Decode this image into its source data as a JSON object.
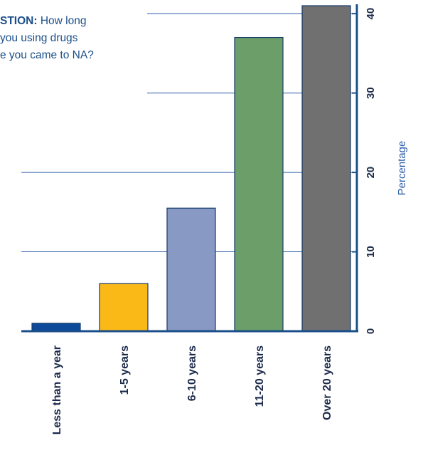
{
  "question": {
    "label": "STION:",
    "line1": "How long",
    "line2": "you using drugs",
    "line3": "e you came to NA?"
  },
  "chart_data": {
    "type": "bar",
    "categories": [
      "Less than a year",
      "1-5 years",
      "6-10 years",
      "11-20 years",
      "Over 20 years"
    ],
    "values": [
      1,
      6,
      15.5,
      37,
      41
    ],
    "colors": [
      "#0d4a9a",
      "#fbb917",
      "#8899c4",
      "#6b9e68",
      "#707071"
    ],
    "bar_stroke": "#153a6a",
    "axis_color": "#1b4f8a",
    "gridline_color": "#2a5ca8",
    "ylabel": "Percentage",
    "ylim": [
      0,
      41
    ],
    "yticks": [
      0,
      10,
      20,
      30,
      40
    ],
    "orientation": "rotated 90 degrees clockwise; value axis on the right"
  }
}
